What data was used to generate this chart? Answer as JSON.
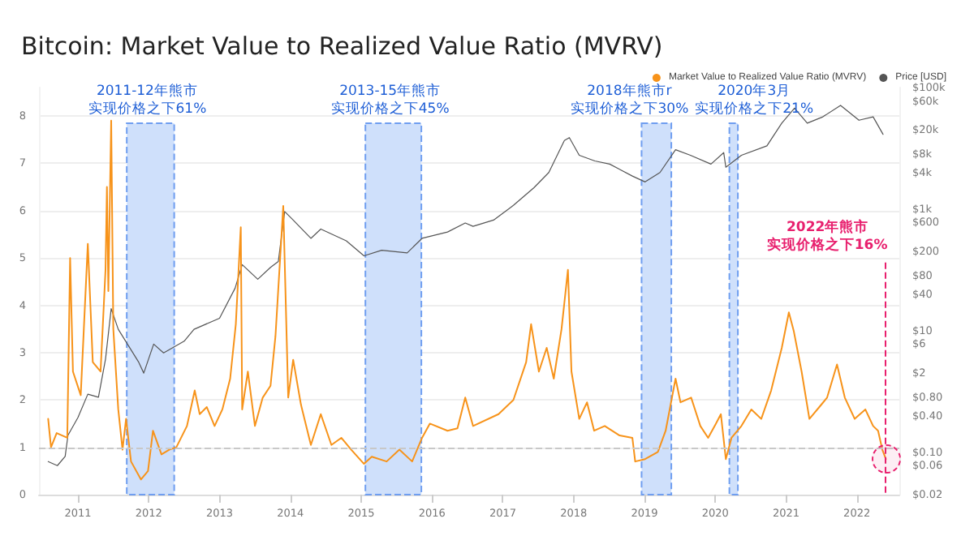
{
  "chart_data": {
    "type": "line",
    "title": "Bitcoin: Market Value to Realized Value Ratio (MVRV)",
    "xlim": [
      2010.45,
      2022.6
    ],
    "xticks": [
      2011,
      2012,
      2013,
      2014,
      2015,
      2016,
      2017,
      2018,
      2019,
      2020,
      2021,
      2022
    ],
    "ylim": [
      0,
      8.6
    ],
    "yticks": [
      0,
      1,
      2,
      3,
      4,
      5,
      6,
      7,
      8
    ],
    "y2lim": [
      0.02,
      100000
    ],
    "y2ticks": [
      {
        "value": 0.02,
        "label": "$0.02"
      },
      {
        "value": 0.06,
        "label": "$0.06"
      },
      {
        "value": 0.1,
        "label": "$0.10"
      },
      {
        "value": 0.4,
        "label": "$0.40"
      },
      {
        "value": 0.8,
        "label": "$0.80"
      },
      {
        "value": 2,
        "label": "$2"
      },
      {
        "value": 6,
        "label": "$6"
      },
      {
        "value": 10,
        "label": "$10"
      },
      {
        "value": 40,
        "label": "$40"
      },
      {
        "value": 80,
        "label": "$80"
      },
      {
        "value": 200,
        "label": "$200"
      },
      {
        "value": 600,
        "label": "$600"
      },
      {
        "value": 1000,
        "label": "$1k"
      },
      {
        "value": 4000,
        "label": "$4k"
      },
      {
        "value": 8000,
        "label": "$8k"
      },
      {
        "value": 20000,
        "label": "$20k"
      },
      {
        "value": 60000,
        "label": "$60k"
      },
      {
        "value": 100000,
        "label": "$100k"
      }
    ],
    "log": "y2",
    "grid": "y",
    "legend": "top right",
    "marker": "none",
    "line_style": "solid",
    "series": [
      {
        "name": "Market Value to Realized Value Ratio (MVRV)",
        "color": "#f7931a",
        "x": [
          2010.58,
          2010.62,
          2010.7,
          2010.85,
          2010.89,
          2010.93,
          2011.04,
          2011.14,
          2011.21,
          2011.32,
          2011.39,
          2011.41,
          2011.43,
          2011.47,
          2011.5,
          2011.57,
          2011.63,
          2011.68,
          2011.75,
          2011.89,
          2011.99,
          2012.06,
          2012.18,
          2012.29,
          2012.39,
          2012.54,
          2012.65,
          2012.72,
          2012.82,
          2012.93,
          2013.04,
          2013.15,
          2013.23,
          2013.3,
          2013.32,
          2013.4,
          2013.5,
          2013.61,
          2013.72,
          2013.79,
          2013.9,
          2013.97,
          2014.04,
          2014.15,
          2014.29,
          2014.43,
          2014.58,
          2014.72,
          2014.86,
          2015.04,
          2015.15,
          2015.36,
          2015.54,
          2015.72,
          2015.86,
          2015.97,
          2016.22,
          2016.36,
          2016.47,
          2016.58,
          2016.94,
          2017.15,
          2017.33,
          2017.4,
          2017.51,
          2017.62,
          2017.72,
          2017.83,
          2017.92,
          2017.97,
          2018.08,
          2018.19,
          2018.29,
          2018.44,
          2018.65,
          2018.83,
          2018.87,
          2019.01,
          2019.19,
          2019.3,
          2019.44,
          2019.51,
          2019.66,
          2019.79,
          2019.9,
          2020.01,
          2020.08,
          2020.15,
          2020.23,
          2020.37,
          2020.51,
          2020.65,
          2020.79,
          2020.94,
          2021.04,
          2021.11,
          2021.22,
          2021.33,
          2021.47,
          2021.58,
          2021.72,
          2021.83,
          2021.97,
          2022.12,
          2022.23,
          2022.3,
          2022.36,
          2022.41
        ],
        "values": [
          1.6,
          1.0,
          1.3,
          1.2,
          5.0,
          2.6,
          2.1,
          5.3,
          2.8,
          2.6,
          4.75,
          6.5,
          4.3,
          7.9,
          3.5,
          1.8,
          0.95,
          1.6,
          0.7,
          0.32,
          0.5,
          1.35,
          0.85,
          0.95,
          1.0,
          1.45,
          2.2,
          1.7,
          1.85,
          1.45,
          1.8,
          2.45,
          3.6,
          5.65,
          1.8,
          2.6,
          1.45,
          2.05,
          2.3,
          3.35,
          6.1,
          2.05,
          2.85,
          1.9,
          1.05,
          1.7,
          1.05,
          1.2,
          0.95,
          0.65,
          0.8,
          0.7,
          0.95,
          0.7,
          1.2,
          1.5,
          1.35,
          1.4,
          2.05,
          1.45,
          1.7,
          2.0,
          2.8,
          3.6,
          2.6,
          3.1,
          2.45,
          3.5,
          4.75,
          2.6,
          1.6,
          1.95,
          1.35,
          1.45,
          1.25,
          1.2,
          0.7,
          0.75,
          0.9,
          1.35,
          2.45,
          1.95,
          2.05,
          1.45,
          1.2,
          1.5,
          1.7,
          0.75,
          1.2,
          1.45,
          1.8,
          1.6,
          2.2,
          3.1,
          3.85,
          3.45,
          2.6,
          1.6,
          1.85,
          2.05,
          2.75,
          2.05,
          1.6,
          1.8,
          1.45,
          1.35,
          0.95,
          0.75
        ]
      },
      {
        "name": "Price [USD]",
        "color": "#555555",
        "axis": "y2",
        "x": [
          2010.58,
          2010.71,
          2010.82,
          2010.86,
          2011.0,
          2011.14,
          2011.29,
          2011.39,
          2011.47,
          2011.57,
          2011.86,
          2011.93,
          2012.07,
          2012.21,
          2012.5,
          2012.64,
          2013.0,
          2013.22,
          2013.32,
          2013.54,
          2013.72,
          2013.83,
          2013.92,
          2014.04,
          2014.29,
          2014.43,
          2014.79,
          2015.04,
          2015.29,
          2015.65,
          2015.86,
          2016.22,
          2016.47,
          2016.58,
          2016.87,
          2017.15,
          2017.44,
          2017.65,
          2017.87,
          2017.94,
          2018.08,
          2018.3,
          2018.51,
          2018.83,
          2019.01,
          2019.22,
          2019.44,
          2019.65,
          2019.94,
          2020.12,
          2020.15,
          2020.37,
          2020.73,
          2020.94,
          2021.12,
          2021.3,
          2021.52,
          2021.77,
          2022.03,
          2022.23,
          2022.37
        ],
        "values": [
          0.07,
          0.06,
          0.085,
          0.19,
          0.37,
          0.9,
          0.8,
          3.4,
          23,
          10.5,
          3,
          2,
          6,
          4.3,
          6.7,
          10.5,
          16,
          50,
          122,
          70,
          110,
          137,
          910,
          660,
          330,
          470,
          300,
          170,
          210,
          190,
          330,
          420,
          590,
          520,
          660,
          1150,
          2250,
          4000,
          13500,
          15000,
          7700,
          6200,
          5500,
          3500,
          2800,
          4000,
          9500,
          7700,
          5500,
          8500,
          4900,
          7700,
          11000,
          26000,
          46000,
          26000,
          33000,
          51000,
          29000,
          33000,
          17000
        ]
      }
    ],
    "ref_lines": [
      {
        "axis": "y",
        "value": 1,
        "color": "#c8c8c8",
        "line_style": "dashed"
      },
      {
        "axis": "x",
        "value": 2022.4,
        "label": "2022年熊市",
        "color": "#e8206e",
        "line_style": "dashed"
      }
    ],
    "bands": [
      {
        "axis": "x",
        "from": 2011.69,
        "to": 2012.36,
        "label": "2011-12年熊市",
        "color": "#cfe0fb"
      },
      {
        "axis": "x",
        "from": 2015.06,
        "to": 2015.85,
        "label": "2013-15年熊市",
        "color": "#cfe0fb"
      },
      {
        "axis": "x",
        "from": 2018.96,
        "to": 2019.38,
        "label": "2018年熊市r",
        "color": "#cfe0fb"
      },
      {
        "axis": "x",
        "from": 2020.2,
        "to": 2020.32,
        "label": "2020年3月",
        "color": "#cfe0fb"
      }
    ],
    "annotations": [
      "实现价格之下61%",
      "实现价格之下45%",
      "实现价格之下30%",
      "实现价格之下21%",
      "实现价格之下16%"
    ]
  }
}
